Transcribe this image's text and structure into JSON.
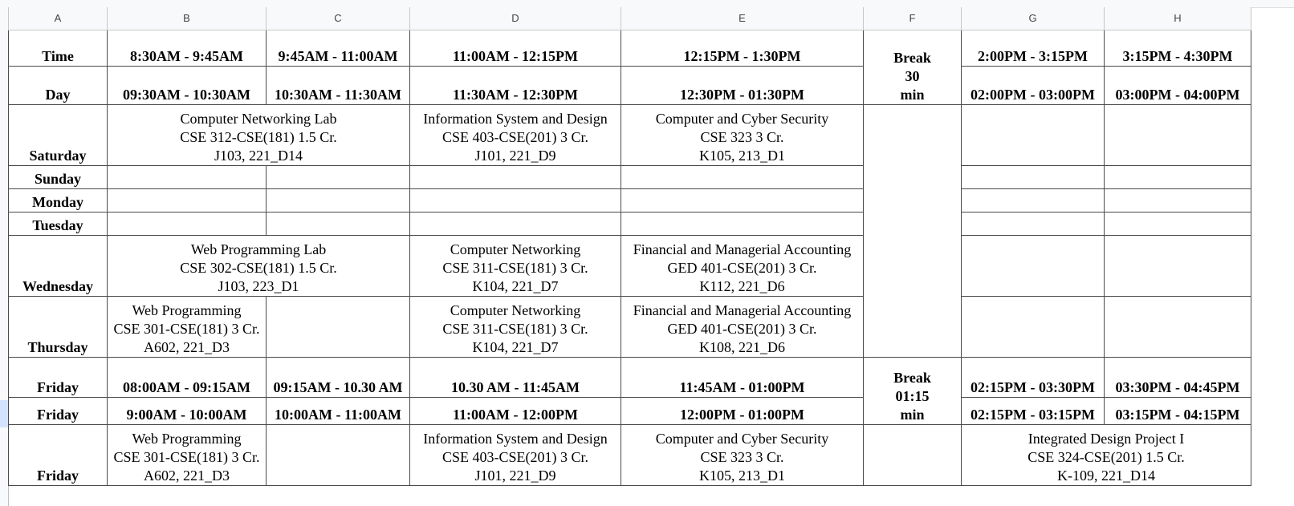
{
  "columns": [
    "A",
    "B",
    "C",
    "D",
    "E",
    "F",
    "G",
    "H"
  ],
  "header": {
    "time_label": "Time",
    "time_slots": [
      "8:30AM - 9:45AM",
      "9:45AM - 11:00AM",
      "11:00AM - 12:15PM",
      "12:15PM - 1:30PM",
      "2:00PM - 3:15PM",
      "3:15PM - 4:30PM"
    ],
    "day_label": "Day",
    "day_slots": [
      "09:30AM - 10:30AM",
      "10:30AM - 11:30AM",
      "11:30AM - 12:30PM",
      "12:30PM - 01:30PM",
      "02:00PM - 03:00PM",
      "03:00PM - 04:00PM"
    ],
    "break_lines": [
      "Break",
      "30",
      "min"
    ]
  },
  "days": [
    "Saturday",
    "Sunday",
    "Monday",
    "Tuesday",
    "Wednesday",
    "Thursday"
  ],
  "saturday": {
    "bc": [
      "Computer Networking Lab",
      "CSE 312-CSE(181) 1.5 Cr.",
      "J103, 221_D14"
    ],
    "d": [
      "Information System and Design",
      "CSE 403-CSE(201) 3 Cr.",
      "J101, 221_D9"
    ],
    "e": [
      "Computer and Cyber Security",
      "CSE 323 3 Cr.",
      "K105, 213_D1"
    ]
  },
  "wednesday": {
    "bc": [
      "Web Programming Lab",
      "CSE 302-CSE(181) 1.5 Cr.",
      "J103, 223_D1"
    ],
    "d": [
      "Computer Networking",
      "CSE 311-CSE(181) 3 Cr.",
      "K104, 221_D7"
    ],
    "e": [
      "Financial and Managerial Accounting",
      "GED 401-CSE(201) 3 Cr.",
      "K112, 221_D6"
    ]
  },
  "thursday": {
    "b": [
      "Web Programming",
      "CSE 301-CSE(181) 3 Cr.",
      "A602, 221_D3"
    ],
    "d": [
      "Computer Networking",
      "CSE 311-CSE(181) 3 Cr.",
      "K104, 221_D7"
    ],
    "e": [
      "Financial and Managerial Accounting",
      "GED 401-CSE(201) 3 Cr.",
      "K108, 221_D6"
    ]
  },
  "friday": {
    "label": "Friday",
    "slots1": [
      "08:00AM - 09:15AM",
      "09:15AM - 10.30 AM",
      "10.30 AM - 11:45AM",
      "11:45AM - 01:00PM",
      "02:15PM - 03:30PM",
      "03:30PM - 04:45PM"
    ],
    "slots2": [
      "9:00AM - 10:00AM",
      "10:00AM - 11:00AM",
      "11:00AM - 12:00PM",
      "12:00PM - 01:00PM",
      "02:15PM - 03:15PM",
      "03:15PM - 04:15PM"
    ],
    "break_lines": [
      "Break",
      "01:15",
      "min"
    ],
    "b": [
      "Web Programming",
      "CSE 301-CSE(181) 3 Cr.",
      "A602, 221_D3"
    ],
    "d": [
      "Information System and Design",
      "CSE 403-CSE(201) 3 Cr.",
      "J101, 221_D9"
    ],
    "e": [
      "Computer and Cyber Security",
      "CSE 323 3 Cr.",
      "K105, 213_D1"
    ],
    "gh": [
      "Integrated Design Project I",
      "CSE 324-CSE(201) 1.5 Cr.",
      "K-109, 221_D14"
    ]
  }
}
